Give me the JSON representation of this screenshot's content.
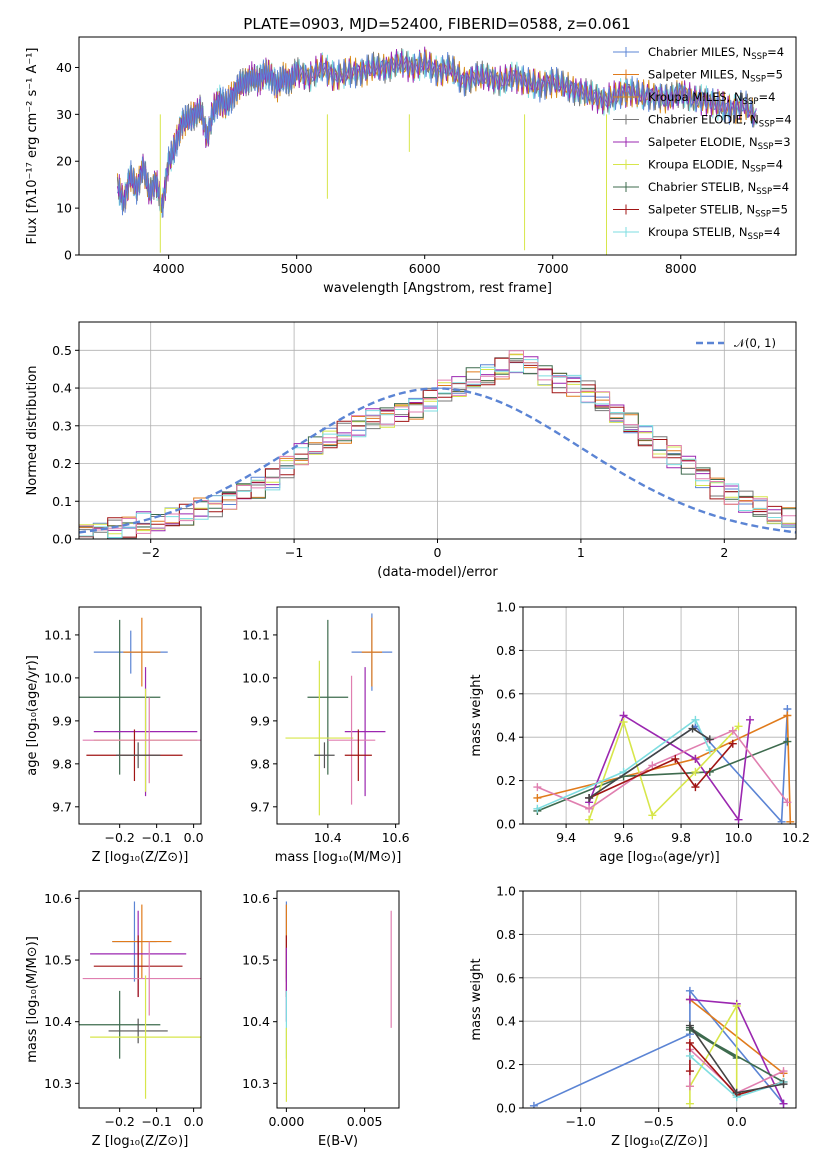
{
  "figure_title": "PLATE=0903, MJD=52400, FIBERID=0588, z=0.061",
  "colors": {
    "Chabrier MILES": "#5b84d4",
    "Salpeter MILES": "#e07b1c",
    "Kroupa MILES": "#d98a17",
    "Chabrier ELODIE": "#777777",
    "Salpeter ELODIE": "#9b27b0",
    "Kroupa ELODIE": "#d7e64b",
    "Chabrier STELIB": "#3e6b4e",
    "Salpeter STELIB": "#a01414",
    "Kroupa STELIB": "#7ddde0",
    "pink": "#e07fb0",
    "normal": "#5b84d4"
  },
  "chart_data": [
    {
      "id": "spectrum",
      "type": "line",
      "xlabel": "wavelength [Angstrom, rest frame]",
      "ylabel": "Flux [fλ10⁻¹⁷ erg cm⁻² s⁻¹ A⁻¹]",
      "xlim": [
        3300,
        8900
      ],
      "ylim": [
        0,
        46.5
      ],
      "xticks": [
        "4000",
        "5000",
        "6000",
        "7000",
        "8000"
      ],
      "yticks": [
        "0",
        "10",
        "20",
        "30",
        "40"
      ],
      "legend_position": "top-right",
      "legend": [
        {
          "label": "Chabrier MILES, N",
          "sub": "SSP",
          "tail": "=4",
          "color": "#5b84d4"
        },
        {
          "label": "Salpeter MILES, N",
          "sub": "SSP",
          "tail": "=5",
          "color": "#e07b1c"
        },
        {
          "label": "Kroupa MILES, N",
          "sub": "SSP",
          "tail": "=4",
          "color": "#d98a17"
        },
        {
          "label": "Chabrier ELODIE, N",
          "sub": "SSP",
          "tail": "=4",
          "color": "#777777"
        },
        {
          "label": "Salpeter ELODIE, N",
          "sub": "SSP",
          "tail": "=3",
          "color": "#9b27b0"
        },
        {
          "label": "Kroupa ELODIE, N",
          "sub": "SSP",
          "tail": "=4",
          "color": "#d7e64b"
        },
        {
          "label": "Chabrier STELIB, N",
          "sub": "SSP",
          "tail": "=4",
          "color": "#3e6b4e"
        },
        {
          "label": "Salpeter STELIB, N",
          "sub": "SSP",
          "tail": "=5",
          "color": "#a01414"
        },
        {
          "label": "Kroupa STELIB, N",
          "sub": "SSP",
          "tail": "=4",
          "color": "#7ddde0"
        }
      ],
      "x": [
        3600,
        3650,
        3700,
        3750,
        3800,
        3850,
        3900,
        3950,
        4000,
        4050,
        4100,
        4150,
        4200,
        4250,
        4300,
        4350,
        4400,
        4450,
        4500,
        4550,
        4600,
        4650,
        4700,
        4750,
        4800,
        4850,
        4900,
        4950,
        5000,
        5100,
        5200,
        5300,
        5400,
        5500,
        5600,
        5700,
        5800,
        5900,
        6000,
        6100,
        6200,
        6300,
        6400,
        6500,
        6600,
        6700,
        6800,
        6900,
        7000,
        7100,
        7200,
        7300,
        7400,
        7500,
        7600,
        7700,
        7800,
        7900,
        8000,
        8100,
        8200,
        8300,
        8400,
        8500,
        8600
      ],
      "y": [
        15,
        11,
        17,
        14,
        19,
        13,
        16,
        10,
        20,
        23,
        28,
        29,
        30,
        31,
        25,
        31,
        33,
        32,
        34,
        36,
        37,
        38,
        37,
        39,
        38,
        36,
        38,
        37,
        39,
        38,
        40,
        38,
        39,
        39,
        40,
        40,
        41,
        40,
        41,
        39,
        40,
        37,
        38,
        38,
        37,
        38,
        37,
        36,
        37,
        36,
        35,
        34,
        33,
        34,
        35,
        34,
        34,
        33,
        35,
        33,
        33,
        32,
        31,
        32,
        29
      ],
      "spikes": [
        {
          "x": 3935,
          "y": 0.5
        },
        {
          "x": 5240,
          "y": 12
        },
        {
          "x": 5880,
          "y": 22
        },
        {
          "x": 6780,
          "y": 1
        },
        {
          "x": 7420,
          "y": 0
        }
      ]
    },
    {
      "id": "residuals",
      "type": "histogram",
      "xlabel": "(data-model)/error",
      "ylabel": "Normed distribution",
      "xlim": [
        -2.5,
        2.5
      ],
      "ylim": [
        0,
        0.575
      ],
      "xticks": [
        "−2",
        "−1",
        "0",
        "1",
        "2"
      ],
      "yticks": [
        "0.0",
        "0.1",
        "0.2",
        "0.3",
        "0.4",
        "0.5"
      ],
      "grid": true,
      "legend": [
        {
          "label": "𝒩(0, 1)",
          "color": "#5b84d4",
          "style": "dashed"
        }
      ],
      "legend_position": "top-right",
      "bin_start": -2.5,
      "bin_width": 0.1,
      "base_values": [
        0.02,
        0.02,
        0.03,
        0.03,
        0.04,
        0.04,
        0.05,
        0.06,
        0.08,
        0.09,
        0.11,
        0.13,
        0.14,
        0.16,
        0.19,
        0.22,
        0.24,
        0.26,
        0.28,
        0.3,
        0.32,
        0.33,
        0.34,
        0.35,
        0.37,
        0.39,
        0.4,
        0.42,
        0.43,
        0.45,
        0.47,
        0.46,
        0.44,
        0.42,
        0.41,
        0.39,
        0.36,
        0.33,
        0.3,
        0.27,
        0.24,
        0.22,
        0.2,
        0.17,
        0.14,
        0.12,
        0.1,
        0.08,
        0.06,
        0.05
      ]
    },
    {
      "id": "age-vs-Z",
      "type": "errorbar",
      "xlabel": "Z [log₁₀(Z/Z⊙)]",
      "ylabel": "age  [log₁₀(age/yr)]",
      "xlim": [
        -0.31,
        0.02
      ],
      "ylim": [
        9.66,
        10.165
      ],
      "xticks": [
        "−0.2",
        "−0.1",
        "0.0"
      ],
      "yticks": [
        "9.7",
        "9.8",
        "9.9",
        "10.0",
        "10.1"
      ],
      "points": [
        {
          "x": -0.17,
          "y": 10.06,
          "xerr": 0.1,
          "yerr": 0.05,
          "color": "#5b84d4"
        },
        {
          "x": -0.14,
          "y": 10.06,
          "xerr": 0.05,
          "yerr": 0.08,
          "color": "#e07b1c"
        },
        {
          "x": -0.2,
          "y": 9.955,
          "xerr": 0.11,
          "yerr": 0.18,
          "color": "#3e6b4e"
        },
        {
          "x": -0.13,
          "y": 9.875,
          "xerr": 0.14,
          "yerr": 0.15,
          "color": "#9b27b0"
        },
        {
          "x": -0.13,
          "y": 9.855,
          "xerr": 0.14,
          "yerr": 0.12,
          "color": "#d7e64b"
        },
        {
          "x": -0.12,
          "y": 9.855,
          "xerr": 0.18,
          "yerr": 0.1,
          "color": "#e07fb0"
        },
        {
          "x": -0.16,
          "y": 9.82,
          "xerr": 0.13,
          "yerr": 0.06,
          "color": "#a01414"
        },
        {
          "x": -0.15,
          "y": 9.82,
          "xerr": 0.06,
          "yerr": 0.03,
          "color": "#555555"
        }
      ]
    },
    {
      "id": "age-vs-mass",
      "type": "errorbar",
      "xlabel": "mass [log₁₀(M/M⊙)]",
      "ylabel": "",
      "xlim": [
        10.25,
        10.61
      ],
      "ylim": [
        9.66,
        10.165
      ],
      "xticks": [
        "10.4",
        "10.6"
      ],
      "yticks": [
        "9.7",
        "9.8",
        "9.9",
        "10.0",
        "10.1"
      ],
      "points": [
        {
          "x": 10.53,
          "y": 10.06,
          "xerr": 0.06,
          "yerr": 0.09,
          "color": "#5b84d4"
        },
        {
          "x": 10.53,
          "y": 10.06,
          "xerr": 0.03,
          "yerr": 0.08,
          "color": "#e07b1c"
        },
        {
          "x": 10.4,
          "y": 9.955,
          "xerr": 0.06,
          "yerr": 0.18,
          "color": "#3e6b4e"
        },
        {
          "x": 10.51,
          "y": 9.875,
          "xerr": 0.06,
          "yerr": 0.15,
          "color": "#9b27b0"
        },
        {
          "x": 10.375,
          "y": 9.86,
          "xerr": 0.1,
          "yerr": 0.18,
          "color": "#d7e64b"
        },
        {
          "x": 10.47,
          "y": 9.855,
          "xerr": 0.07,
          "yerr": 0.15,
          "color": "#e07fb0"
        },
        {
          "x": 10.49,
          "y": 9.82,
          "xerr": 0.04,
          "yerr": 0.06,
          "color": "#a01414"
        },
        {
          "x": 10.39,
          "y": 9.82,
          "xerr": 0.03,
          "yerr": 0.03,
          "color": "#555555"
        }
      ]
    },
    {
      "id": "weights-vs-age",
      "type": "line",
      "xlabel": "age  [log₁₀(age/yr)]",
      "ylabel": "mass weight",
      "xlim": [
        9.25,
        10.2
      ],
      "ylim": [
        0,
        1
      ],
      "xticks": [
        "9.4",
        "9.6",
        "9.8",
        "10.0",
        "10.2"
      ],
      "yticks": [
        "0.0",
        "0.2",
        "0.4",
        "0.6",
        "0.8",
        "1.0"
      ],
      "grid": true,
      "series": [
        {
          "color": "#5b84d4",
          "x": [
            9.48,
            9.85,
            10.15,
            10.17
          ],
          "y": [
            0.12,
            0.45,
            0.01,
            0.53
          ]
        },
        {
          "color": "#e07b1c",
          "x": [
            9.3,
            9.85,
            10.17,
            10.18
          ],
          "y": [
            0.12,
            0.3,
            0.5,
            0.01
          ]
        },
        {
          "color": "#3e6b4e",
          "x": [
            9.3,
            9.6,
            9.9,
            10.17
          ],
          "y": [
            0.06,
            0.22,
            0.24,
            0.38
          ]
        },
        {
          "color": "#9b27b0",
          "x": [
            9.48,
            9.6,
            9.85,
            10.0,
            10.04
          ],
          "y": [
            0.1,
            0.5,
            0.3,
            0.02,
            0.48
          ]
        },
        {
          "color": "#d7e64b",
          "x": [
            9.48,
            9.6,
            9.7,
            9.85,
            10.0
          ],
          "y": [
            0.02,
            0.47,
            0.04,
            0.24,
            0.45
          ]
        },
        {
          "color": "#e07fb0",
          "x": [
            9.3,
            9.48,
            9.7,
            9.98,
            10.17
          ],
          "y": [
            0.17,
            0.07,
            0.27,
            0.43,
            0.1
          ]
        },
        {
          "color": "#a01414",
          "x": [
            9.48,
            9.78,
            9.85,
            9.98
          ],
          "y": [
            0.12,
            0.3,
            0.17,
            0.37
          ]
        },
        {
          "color": "#7ddde0",
          "x": [
            9.3,
            9.6,
            9.85,
            9.9
          ],
          "y": [
            0.07,
            0.24,
            0.48,
            0.34
          ]
        },
        {
          "color": "#444444",
          "x": [
            9.48,
            9.84,
            9.9
          ],
          "y": [
            0.12,
            0.44,
            0.39
          ]
        }
      ]
    },
    {
      "id": "mass-vs-Z",
      "type": "errorbar",
      "xlabel": "Z [log₁₀(Z/Z⊙)]",
      "ylabel": "mass [log₁₀(M/M⊙)]",
      "xlim": [
        -0.31,
        0.02
      ],
      "ylim": [
        10.26,
        10.612
      ],
      "xticks": [
        "−0.2",
        "−0.1",
        "0.0"
      ],
      "yticks": [
        "10.3",
        "10.4",
        "10.5",
        "10.6"
      ],
      "points": [
        {
          "x": -0.16,
          "y": 10.53,
          "xerr": 0.06,
          "yerr": 0.065,
          "color": "#5b84d4"
        },
        {
          "x": -0.14,
          "y": 10.53,
          "xerr": 0.08,
          "yerr": 0.06,
          "color": "#e07b1c"
        },
        {
          "x": -0.15,
          "y": 10.51,
          "xerr": 0.13,
          "yerr": 0.07,
          "color": "#9b27b0"
        },
        {
          "x": -0.15,
          "y": 10.49,
          "xerr": 0.12,
          "yerr": 0.05,
          "color": "#a01414"
        },
        {
          "x": -0.12,
          "y": 10.47,
          "xerr": 0.18,
          "yerr": 0.06,
          "color": "#e07fb0"
        },
        {
          "x": -0.2,
          "y": 10.395,
          "xerr": 0.11,
          "yerr": 0.055,
          "color": "#3e6b4e"
        },
        {
          "x": -0.15,
          "y": 10.385,
          "xerr": 0.08,
          "yerr": 0.02,
          "color": "#555555"
        },
        {
          "x": -0.13,
          "y": 10.375,
          "xerr": 0.15,
          "yerr": 0.1,
          "color": "#d7e64b"
        }
      ]
    },
    {
      "id": "mass-vs-EBV",
      "type": "errorbar",
      "xlabel": "E(B-V)",
      "ylabel": "",
      "xlim": [
        -0.0006,
        0.0072
      ],
      "ylim": [
        10.26,
        10.612
      ],
      "xticks": [
        "0.000",
        "0.005"
      ],
      "yticks": [
        "10.3",
        "10.4",
        "10.5",
        "10.6"
      ],
      "points": [
        {
          "x": 0.0,
          "y": 10.53,
          "xerr": 0,
          "yerr": 0.065,
          "color": "#5b84d4"
        },
        {
          "x": 0.0,
          "y": 10.53,
          "xerr": 0,
          "yerr": 0.06,
          "color": "#e07b1c"
        },
        {
          "x": 0.0,
          "y": 10.49,
          "xerr": 0,
          "yerr": 0.05,
          "color": "#a01414"
        },
        {
          "x": 0.0,
          "y": 10.46,
          "xerr": 0,
          "yerr": 0.06,
          "color": "#9b27b0"
        },
        {
          "x": 0.0,
          "y": 10.395,
          "xerr": 0,
          "yerr": 0.055,
          "color": "#7ddde0"
        },
        {
          "x": 0.0,
          "y": 10.33,
          "xerr": 0,
          "yerr": 0.06,
          "color": "#d7e64b"
        },
        {
          "x": 0.0067,
          "y": 10.485,
          "xerr": 0,
          "yerr": 0.095,
          "color": "#e07fb0"
        }
      ]
    },
    {
      "id": "weights-vs-Z",
      "type": "line",
      "xlabel": "Z [log₁₀(Z/Z⊙)]",
      "ylabel": "mass weight",
      "xlim": [
        -1.37,
        0.38
      ],
      "ylim": [
        0,
        1
      ],
      "xticks": [
        "−1.0",
        "−0.5",
        "0.0"
      ],
      "yticks": [
        "0.0",
        "0.2",
        "0.4",
        "0.6",
        "0.8",
        "1.0"
      ],
      "grid": true,
      "series": [
        {
          "color": "#5b84d4",
          "x": [
            -1.3,
            -0.3,
            -0.3,
            0.3
          ],
          "y": [
            0.01,
            0.34,
            0.54,
            0.02
          ]
        },
        {
          "color": "#e07b1c",
          "x": [
            -0.3,
            0.3
          ],
          "y": [
            0.5,
            0.16
          ]
        },
        {
          "color": "#9b27b0",
          "x": [
            -0.3,
            0.0,
            0.3
          ],
          "y": [
            0.5,
            0.48,
            0.02
          ]
        },
        {
          "color": "#3e6b4e",
          "x": [
            -0.3,
            0.0,
            -0.3,
            0.3
          ],
          "y": [
            0.37,
            0.23,
            0.36,
            0.12
          ]
        },
        {
          "color": "#d7e64b",
          "x": [
            -0.3,
            -0.3,
            0.0,
            0.0
          ],
          "y": [
            0.02,
            0.1,
            0.47,
            0.06
          ]
        },
        {
          "color": "#e07fb0",
          "x": [
            -0.3,
            -0.3,
            0.0,
            0.3
          ],
          "y": [
            0.1,
            0.27,
            0.07,
            0.17
          ]
        },
        {
          "color": "#a01414",
          "x": [
            -0.3,
            -0.3,
            0.0,
            0.3
          ],
          "y": [
            0.17,
            0.3,
            0.06,
            0.12
          ]
        },
        {
          "color": "#7ddde0",
          "x": [
            -0.3,
            0.0,
            0.3
          ],
          "y": [
            0.24,
            0.05,
            0.12
          ]
        },
        {
          "color": "#444444",
          "x": [
            -0.3,
            0.0,
            0.3
          ],
          "y": [
            0.38,
            0.07,
            0.11
          ]
        }
      ]
    }
  ]
}
